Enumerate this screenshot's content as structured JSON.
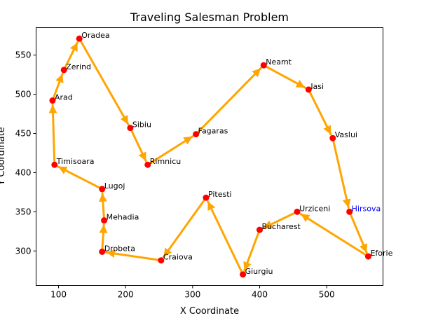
{
  "chart_data": {
    "type": "line",
    "title": "Traveling Salesman Problem",
    "xlabel": "X Coordinate",
    "ylabel": "Y Coordinate",
    "xlim": [
      66.5,
      584
    ],
    "ylim": [
      256,
      585
    ],
    "xticks": [
      100,
      200,
      300,
      400,
      500
    ],
    "yticks": [
      300,
      350,
      400,
      450,
      500,
      550
    ],
    "grid": false,
    "colors": {
      "route": "#FFA500",
      "city": "#FF0000",
      "label": "#000000",
      "highlight_label": "#0000FF"
    },
    "cities": [
      {
        "name": "Oradea",
        "x": 131,
        "y": 571
      },
      {
        "name": "Sibiu",
        "x": 207,
        "y": 457
      },
      {
        "name": "Rimnicu",
        "x": 233,
        "y": 410
      },
      {
        "name": "Fagaras",
        "x": 305,
        "y": 449
      },
      {
        "name": "Neamt",
        "x": 406,
        "y": 537
      },
      {
        "name": "Iasi",
        "x": 473,
        "y": 506
      },
      {
        "name": "Vaslui",
        "x": 509,
        "y": 444
      },
      {
        "name": "Hirsova",
        "x": 534,
        "y": 350,
        "highlight": true
      },
      {
        "name": "Eforie",
        "x": 562,
        "y": 293
      },
      {
        "name": "Urziceni",
        "x": 456,
        "y": 350
      },
      {
        "name": "Bucharest",
        "x": 400,
        "y": 327
      },
      {
        "name": "Giurgiu",
        "x": 375,
        "y": 270
      },
      {
        "name": "Pitesti",
        "x": 320,
        "y": 368
      },
      {
        "name": "Craiova",
        "x": 253,
        "y": 288
      },
      {
        "name": "Drobeta",
        "x": 165,
        "y": 299
      },
      {
        "name": "Mehadia",
        "x": 168,
        "y": 339
      },
      {
        "name": "Lugoj",
        "x": 165,
        "y": 379
      },
      {
        "name": "Timisoara",
        "x": 94,
        "y": 410
      },
      {
        "name": "Arad",
        "x": 91,
        "y": 492
      },
      {
        "name": "Zerind",
        "x": 108,
        "y": 531
      }
    ]
  }
}
